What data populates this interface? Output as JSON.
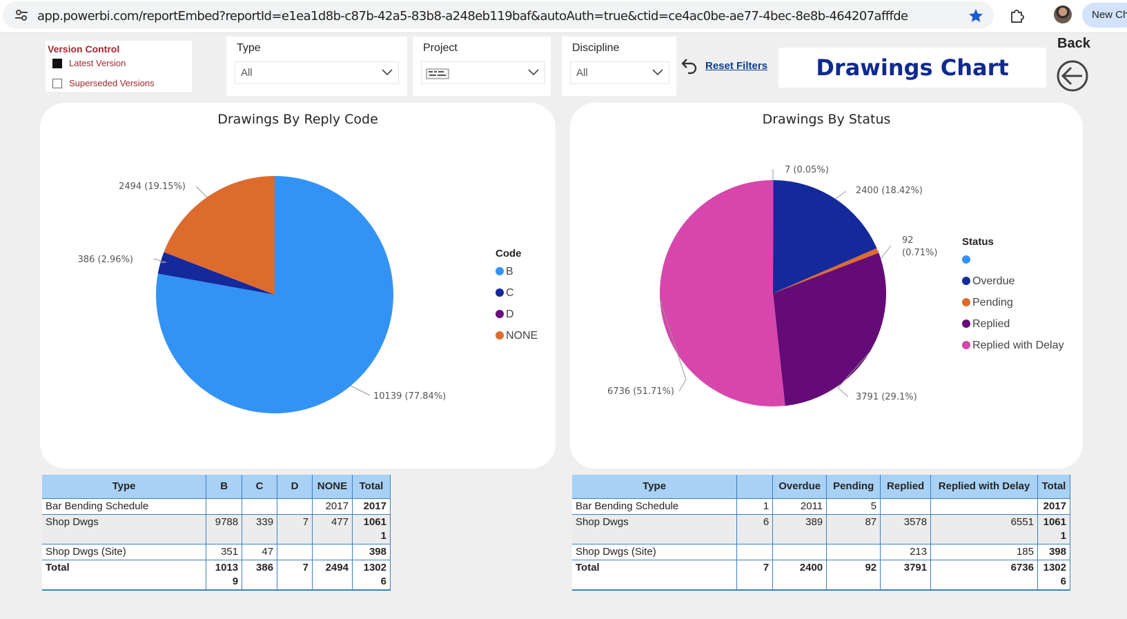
{
  "browser": {
    "url": "app.powerbi.com/reportEmbed?reportId=e1ea1d8b-c87b-42a5-83b8-a248eb119baf&autoAuth=true&ctid=ce4ac0be-ae77-4bec-8e8b-464207afffde",
    "new_chat_label": "New Ch"
  },
  "version_control": {
    "title": "Version Control",
    "options": [
      {
        "label": "Latest Version",
        "checked": true
      },
      {
        "label": "Superseded Versions",
        "checked": false
      }
    ]
  },
  "slicers": {
    "type": {
      "title": "Type",
      "value": "All"
    },
    "project": {
      "title": "Project",
      "value": ""
    },
    "discipline": {
      "title": "Discipline",
      "value": "All"
    }
  },
  "reset_filters_label": "Reset Filters",
  "report_title": "Drawings Chart",
  "back_label": "Back",
  "chart_data": [
    {
      "type": "pie",
      "title": "Drawings By Reply Code",
      "legend_title": "Code",
      "legend_position": "right",
      "categories": [
        "B",
        "C",
        "D",
        "NONE"
      ],
      "values": [
        10139,
        386,
        7,
        2494
      ],
      "colors": [
        "#3393f5",
        "#13299c",
        "#6a0c7e",
        "#dd6b2e"
      ],
      "data_labels": [
        "10139 (77.84%)",
        "386 (2.96%)",
        "",
        "2494 (19.15%)"
      ]
    },
    {
      "type": "pie",
      "title": "Drawings By Status",
      "legend_title": "Status",
      "legend_position": "right",
      "categories": [
        "",
        "Overdue",
        "Pending",
        "Replied",
        "Replied with Delay"
      ],
      "values": [
        7,
        2400,
        92,
        3791,
        6736
      ],
      "colors": [
        "#3393f5",
        "#13299c",
        "#dd6b2e",
        "#640b78",
        "#d746ac"
      ],
      "data_labels": [
        "7 (0.05%)",
        "2400 (18.42%)",
        "92 (0.71%)",
        "3791 (29.1%)",
        "6736 (51.71%)"
      ]
    }
  ],
  "table_code": {
    "columns": [
      "Type",
      "B",
      "C",
      "D",
      "NONE",
      "Total"
    ],
    "rows": [
      [
        "Bar Bending Schedule",
        "",
        "",
        "",
        "2017",
        "2017"
      ],
      [
        "Shop Dwgs",
        "9788",
        "339",
        "7",
        "477",
        "1061 1"
      ],
      [
        "Shop Dwgs (Site)",
        "351",
        "47",
        "",
        "",
        "398"
      ]
    ],
    "total": [
      "Total",
      "1013 9",
      "386",
      "7",
      "2494",
      "1302 6"
    ]
  },
  "table_status": {
    "columns": [
      "Type",
      "",
      "Overdue",
      "Pending",
      "Replied",
      "Replied with Delay",
      "Total"
    ],
    "rows": [
      [
        "Bar Bending Schedule",
        "1",
        "2011",
        "5",
        "",
        "",
        "2017"
      ],
      [
        "Shop Dwgs",
        "6",
        "389",
        "87",
        "3578",
        "6551",
        "1061 1"
      ],
      [
        "Shop Dwgs (Site)",
        "",
        "",
        "",
        "213",
        "185",
        "398"
      ]
    ],
    "total": [
      "Total",
      "7",
      "2400",
      "92",
      "3791",
      "6736",
      "1302 6"
    ]
  }
}
